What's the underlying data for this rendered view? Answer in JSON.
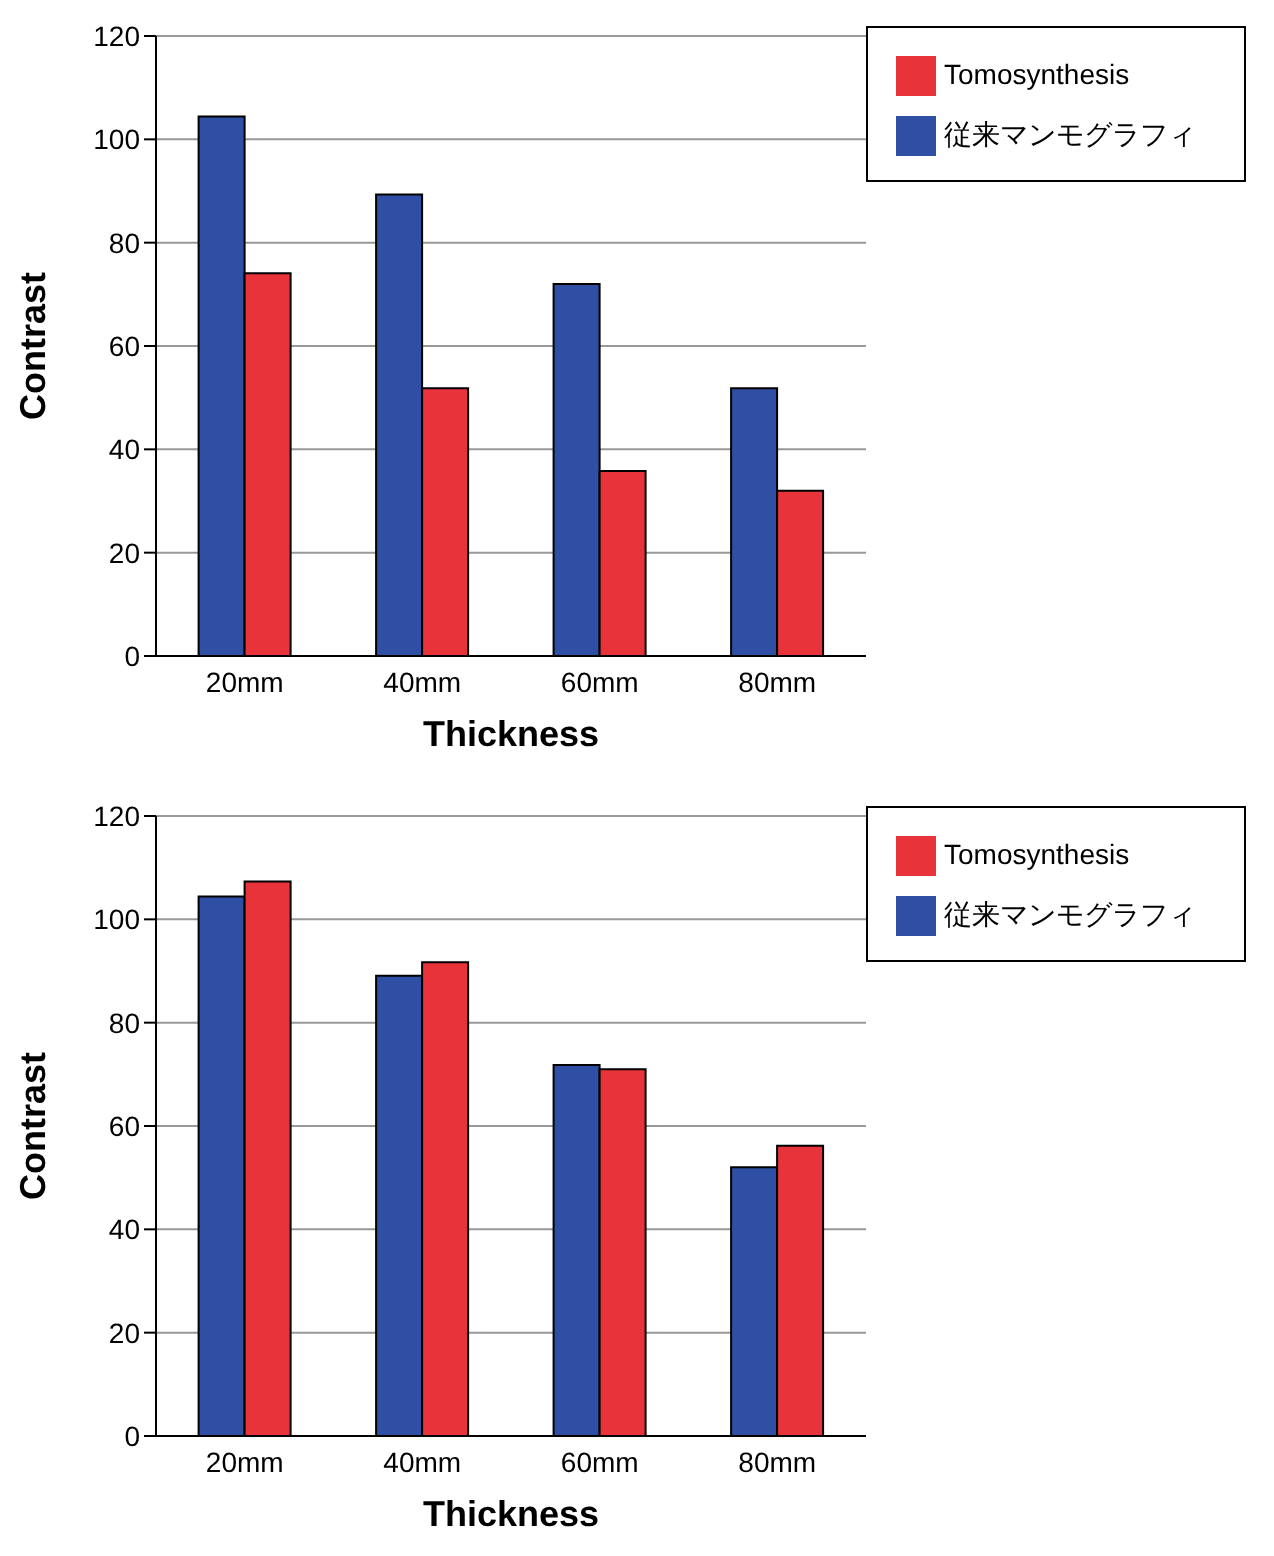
{
  "chart_data": [
    {
      "type": "bar",
      "xlabel": "Thickness",
      "ylabel": "Contrast",
      "categories": [
        "20mm",
        "40mm",
        "60mm",
        "80mm"
      ],
      "series": [
        {
          "name": "従来マンモグラフィ",
          "color": "#2e4fa3",
          "values": [
            104.4,
            89.3,
            72,
            51.8
          ]
        },
        {
          "name": "Tomosynthesis",
          "color": "#e8333a",
          "values": [
            74.1,
            51.8,
            35.8,
            32
          ]
        }
      ],
      "ylim": [
        0,
        120
      ],
      "yticks": [
        0,
        20,
        40,
        60,
        80,
        100,
        120
      ],
      "grid": "y",
      "legend": "top right"
    },
    {
      "type": "bar",
      "xlabel": "Thickness",
      "ylabel": "Contrast",
      "categories": [
        "20mm",
        "40mm",
        "60mm",
        "80mm"
      ],
      "series": [
        {
          "name": "従来マンモグラフィ",
          "color": "#2e4fa3",
          "values": [
            104.4,
            89.1,
            71.8,
            52
          ]
        },
        {
          "name": "Tomosynthesis",
          "color": "#e8333a",
          "values": [
            107.3,
            91.7,
            71,
            56.2
          ]
        }
      ],
      "ylim": [
        0,
        120
      ],
      "yticks": [
        0,
        20,
        40,
        60,
        80,
        100,
        120
      ],
      "grid": "y",
      "legend": "top right"
    }
  ]
}
